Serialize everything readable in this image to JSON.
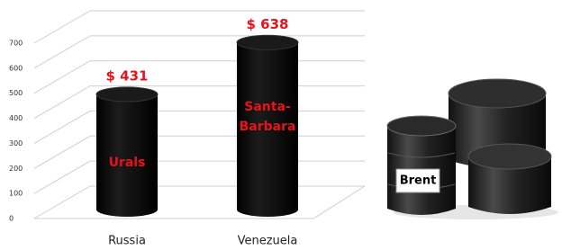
{
  "chart_data": {
    "type": "bar",
    "categories": [
      "Russia",
      "Venezuela"
    ],
    "values": [
      431,
      638
    ],
    "value_labels": [
      "$ 431",
      "$ 638"
    ],
    "bar_labels": [
      [
        "Urals"
      ],
      [
        "Santa-",
        "Barbara"
      ]
    ],
    "color": "#000000",
    "label_color": "#e8121a",
    "ylim": [
      0,
      700
    ],
    "yticks": [
      0,
      100,
      200,
      300,
      400,
      500,
      600,
      700
    ],
    "grid": true
  },
  "image_label": "Brent"
}
